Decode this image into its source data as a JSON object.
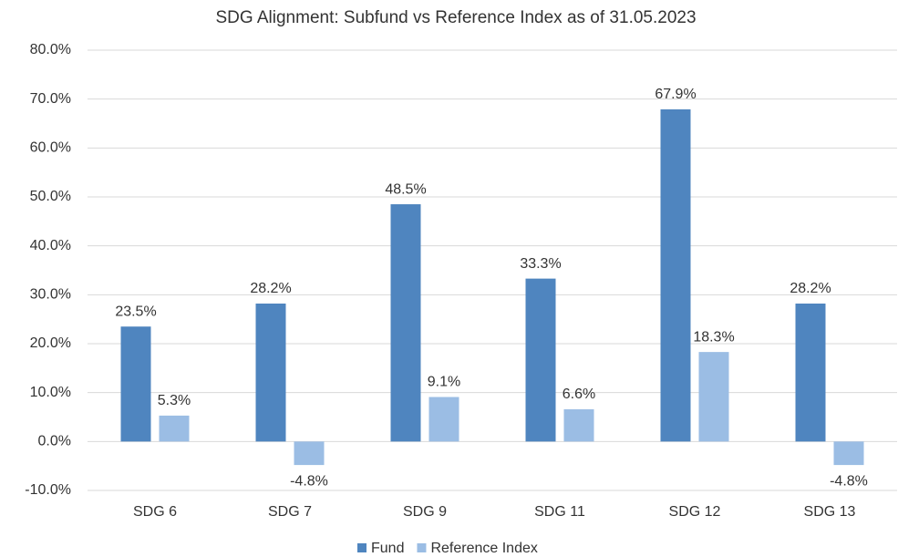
{
  "chart_data": {
    "type": "bar",
    "title": "SDG Alignment: Subfund vs Reference Index as of 31.05.2023",
    "categories": [
      "SDG 6",
      "SDG 7",
      "SDG 9",
      "SDG 11",
      "SDG 12",
      "SDG 13"
    ],
    "series": [
      {
        "name": "Fund",
        "color": "#4f85bf",
        "values": [
          23.5,
          28.2,
          48.5,
          33.3,
          67.9,
          28.2
        ],
        "value_labels": [
          "23.5%",
          "28.2%",
          "48.5%",
          "33.3%",
          "67.9%",
          "28.2%"
        ]
      },
      {
        "name": "Reference Index",
        "color": "#9bbde4",
        "values": [
          5.3,
          -4.8,
          9.1,
          6.6,
          18.3,
          -4.8
        ],
        "value_labels": [
          "5.3%",
          "-4.8%",
          "9.1%",
          "6.6%",
          "18.3%",
          "-4.8%"
        ]
      }
    ],
    "ylim": [
      -10,
      80
    ],
    "yticks": [
      {
        "value": -10,
        "label": "-10.0%"
      },
      {
        "value": 0,
        "label": "0.0%"
      },
      {
        "value": 10,
        "label": "10.0%"
      },
      {
        "value": 20,
        "label": "20.0%"
      },
      {
        "value": 30,
        "label": "30.0%"
      },
      {
        "value": 40,
        "label": "40.0%"
      },
      {
        "value": 50,
        "label": "50.0%"
      },
      {
        "value": 60,
        "label": "60.0%"
      },
      {
        "value": 70,
        "label": "70.0%"
      },
      {
        "value": 80,
        "label": "80.0%"
      }
    ],
    "grid": true,
    "legend": "bottom"
  }
}
